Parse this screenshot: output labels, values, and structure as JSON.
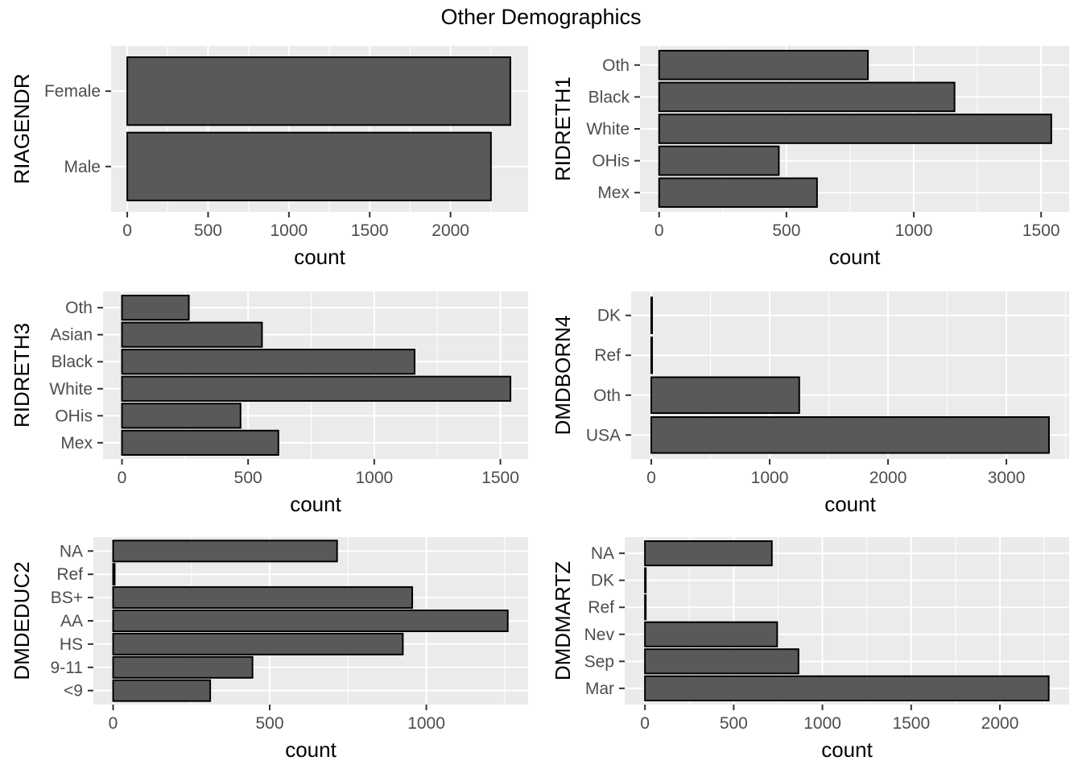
{
  "title": "Other Demographics",
  "chart_data": [
    {
      "type": "bar",
      "orientation": "horizontal",
      "ylabel": "RIAGENDR",
      "xlabel": "count",
      "categories": [
        "Female",
        "Male"
      ],
      "values": [
        2370,
        2250
      ],
      "xlim": [
        -100,
        2480
      ],
      "xticks": [
        0,
        500,
        1000,
        1500,
        2000
      ]
    },
    {
      "type": "bar",
      "orientation": "horizontal",
      "ylabel": "RIDRETH1",
      "xlabel": "count",
      "categories": [
        "Oth",
        "Black",
        "White",
        "OHis",
        "Mex"
      ],
      "values": [
        820,
        1160,
        1540,
        470,
        620
      ],
      "xlim": [
        -75,
        1610
      ],
      "xticks": [
        0,
        500,
        1000,
        1500
      ]
    },
    {
      "type": "bar",
      "orientation": "horizontal",
      "ylabel": "RIDRETH3",
      "xlabel": "count",
      "categories": [
        "Oth",
        "Asian",
        "Black",
        "White",
        "OHis",
        "Mex"
      ],
      "values": [
        265,
        555,
        1160,
        1540,
        470,
        620
      ],
      "xlim": [
        -75,
        1610
      ],
      "xticks": [
        0,
        500,
        1000,
        1500
      ]
    },
    {
      "type": "bar",
      "orientation": "horizontal",
      "ylabel": "DMDBORN4",
      "xlabel": "count",
      "categories": [
        "DK",
        "Ref",
        "Oth",
        "USA"
      ],
      "values": [
        2,
        2,
        1250,
        3360
      ],
      "xlim": [
        -170,
        3530
      ],
      "xticks": [
        0,
        1000,
        2000,
        3000
      ]
    },
    {
      "type": "bar",
      "orientation": "horizontal",
      "ylabel": "DMDEDUC2",
      "xlabel": "count",
      "categories": [
        "NA",
        "Ref",
        "BS+",
        "AA",
        "HS",
        "9-11",
        "<9"
      ],
      "values": [
        715,
        5,
        955,
        1260,
        925,
        445,
        310
      ],
      "xlim": [
        -63,
        1325
      ],
      "xticks": [
        0,
        500,
        1000
      ]
    },
    {
      "type": "bar",
      "orientation": "horizontal",
      "ylabel": "DMDMARTZ",
      "xlabel": "count",
      "categories": [
        "NA",
        "DK",
        "Ref",
        "Nev",
        "Sep",
        "Mar"
      ],
      "values": [
        715,
        2,
        2,
        745,
        865,
        2275
      ],
      "xlim": [
        -114,
        2390
      ],
      "xticks": [
        0,
        500,
        1000,
        1500,
        2000
      ]
    }
  ]
}
